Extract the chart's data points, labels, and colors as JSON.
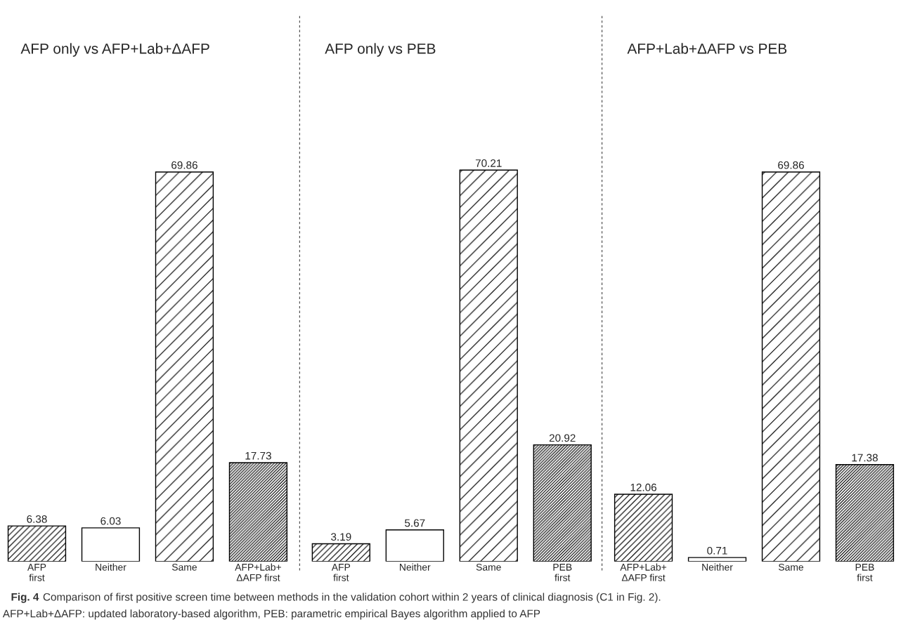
{
  "chart_data": [
    {
      "type": "bar",
      "title": "AFP only vs AFP+Lab+ΔAFP",
      "categories": [
        "AFP\nfirst",
        "Neither",
        "Same",
        "AFP+Lab+\nΔAFP first"
      ],
      "values": [
        6.38,
        6.03,
        69.86,
        17.73
      ],
      "colors": [
        "#000000",
        "#ffffff",
        "#000000",
        "#000000"
      ],
      "data_labels": true,
      "grid": false,
      "legend": false,
      "annotations": [
        "Fig. 4",
        "Comparison of first positive screen time between methods in the validation cohort within 2 years of clinical diagnosis (C1 in Fig. 2).",
        "AFP+Lab+ΔAFP: updated laboratory-based algorithm, PEB: parametric empirical Bayes algorithm applied to AFP"
      ]
    },
    {
      "type": "bar",
      "title": "AFP only vs PEB",
      "categories": [
        "AFP\nfirst",
        "Neither",
        "Same",
        "PEB\nfirst"
      ],
      "values": [
        3.19,
        5.67,
        70.21,
        20.92
      ],
      "colors": [
        "#000000",
        "#ffffff",
        "#000000",
        "#000000"
      ],
      "data_labels": true,
      "grid": false,
      "legend": false
    },
    {
      "type": "bar",
      "title": "AFP+Lab+ΔAFP vs PEB",
      "categories": [
        "AFP+Lab+\nΔAFP first",
        "Neither",
        "Same",
        "PEB\nfirst"
      ],
      "values": [
        12.06,
        0.71,
        69.86,
        17.38
      ],
      "colors": [
        "#000000",
        "#ffffff",
        "#000000",
        "#000000"
      ],
      "data_labels": true,
      "grid": false,
      "legend": false
    }
  ]
}
